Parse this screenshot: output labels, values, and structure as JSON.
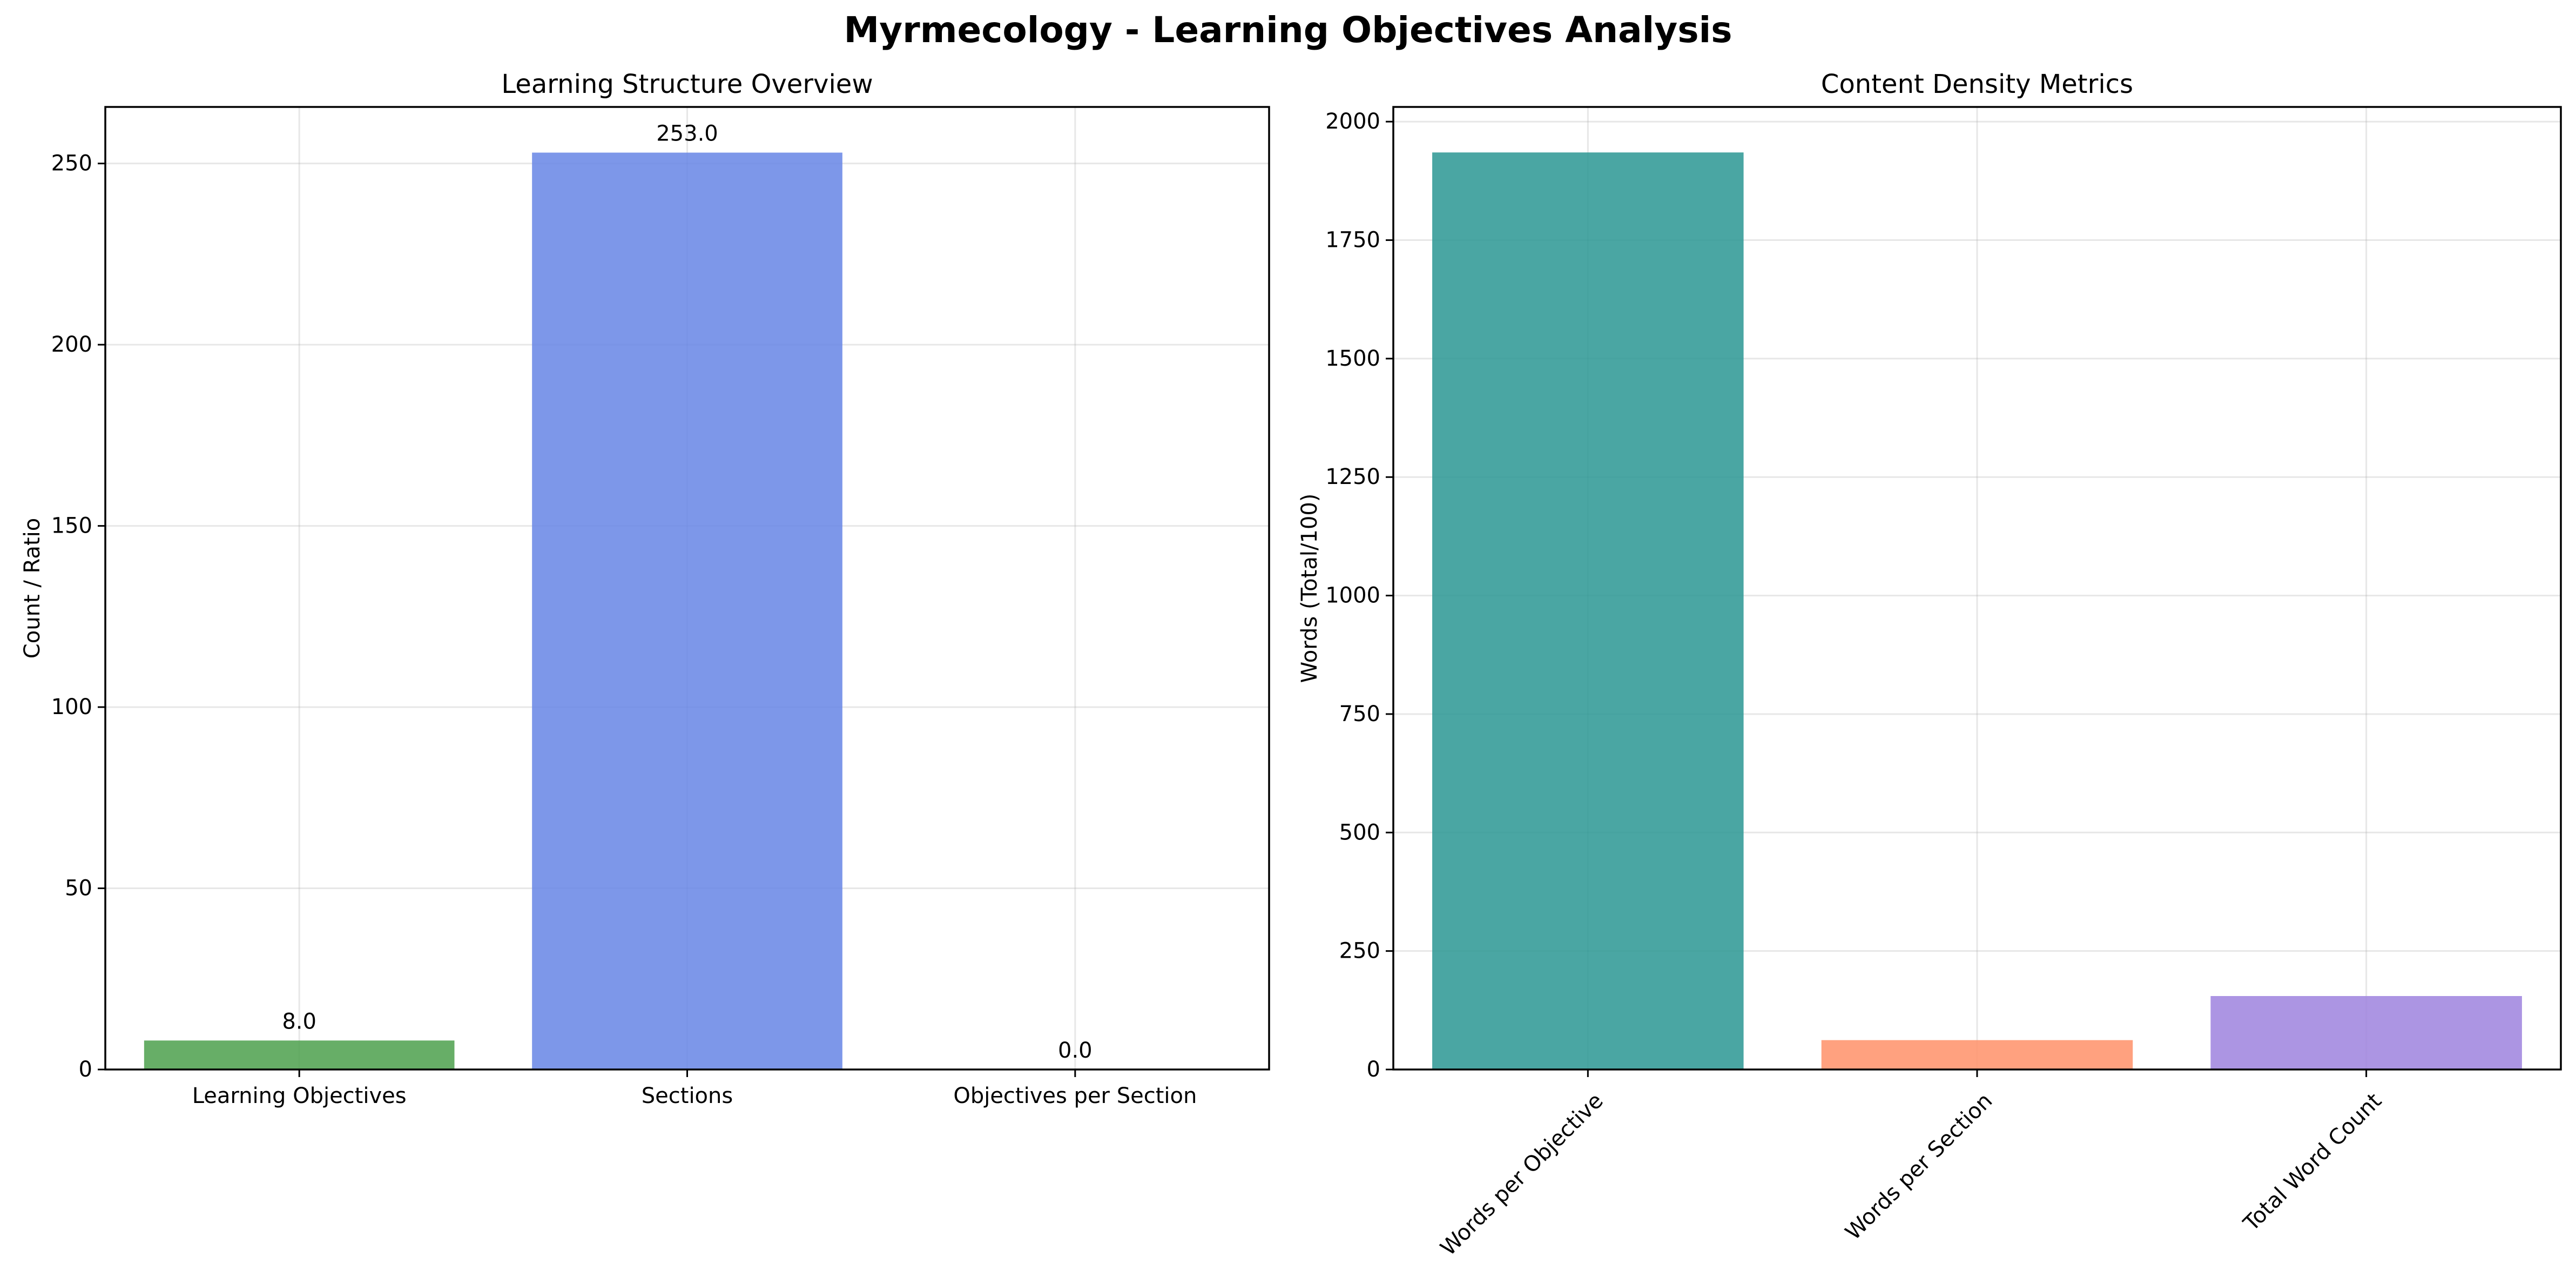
{
  "figure": {
    "title": "Myrmecology - Learning Objectives Analysis"
  },
  "chart_data": [
    {
      "type": "bar",
      "title": "Learning Structure Overview",
      "xlabel": "",
      "ylabel": "Count / Ratio",
      "categories": [
        "Learning Objectives",
        "Sections",
        "Objectives per Section"
      ],
      "values": [
        8.0,
        253.0,
        0.03
      ],
      "value_labels": [
        "8.0",
        "253.0",
        "0.0"
      ],
      "colors": [
        "#4CA04C",
        "#6685E5",
        "#FF8C00"
      ],
      "ylim": [
        0,
        265.6
      ],
      "yticks": [
        0,
        50,
        100,
        150,
        200,
        250
      ],
      "xtick_rotation": 0,
      "grid": true,
      "legend": "none"
    },
    {
      "type": "bar",
      "title": "Content Density Metrics",
      "xlabel": "",
      "ylabel": "Words (Total/100)",
      "categories": [
        "Words per Objective",
        "Words per Section",
        "Total Word Count"
      ],
      "values": [
        1935,
        62,
        155
      ],
      "colors": [
        "#2A9693",
        "#FF9169",
        "#9E82DE"
      ],
      "ylim": [
        0,
        2031
      ],
      "yticks": [
        0,
        250,
        500,
        750,
        1000,
        1250,
        1500,
        1750,
        2000
      ],
      "xtick_rotation": -45,
      "grid": true,
      "legend": "none"
    }
  ]
}
